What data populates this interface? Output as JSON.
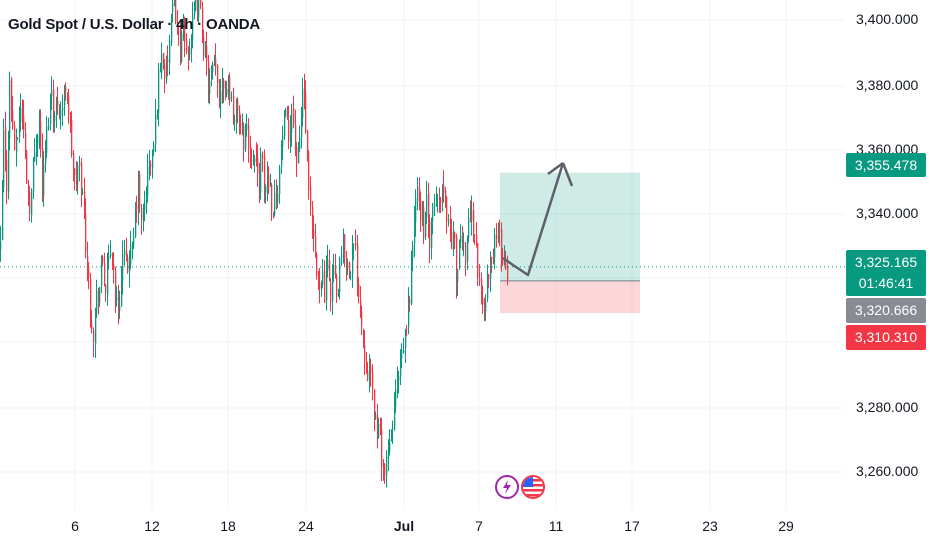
{
  "header": {
    "title": "Gold Spot / U.S. Dollar · 4h · OANDA"
  },
  "colors": {
    "up": "#089981",
    "down": "#F23645",
    "target": "#089981",
    "stop": "#F23645",
    "neutral": "#878b94",
    "arrow": "#5d606b"
  },
  "chart_data": {
    "type": "candlestick",
    "ylim": [
      3247,
      3411
    ],
    "y_ticks": [
      {
        "value": 3400,
        "label": "3,400.000"
      },
      {
        "value": 3380,
        "label": "3,380.000"
      },
      {
        "value": 3360,
        "label": "3,360.000"
      },
      {
        "value": 3340,
        "label": "3,340.000"
      },
      {
        "value": 3280,
        "label": "3,280.000"
      },
      {
        "value": 3260,
        "label": "3,260.000"
      }
    ],
    "x_ticks": [
      {
        "label": "6",
        "bold": false
      },
      {
        "label": "12",
        "bold": false
      },
      {
        "label": "18",
        "bold": false
      },
      {
        "label": "24",
        "bold": false
      },
      {
        "label": "Jul",
        "bold": true
      },
      {
        "label": "7",
        "bold": false
      },
      {
        "label": "11",
        "bold": false
      },
      {
        "label": "17",
        "bold": false
      },
      {
        "label": "23",
        "bold": false
      },
      {
        "label": "29",
        "bold": false
      }
    ],
    "current_price": {
      "value": 3325.165,
      "label": "3,325.165",
      "countdown": "01:46:41"
    },
    "position": {
      "entry": {
        "value": 3320.666,
        "label": "3,320.666"
      },
      "target": {
        "value": 3355.478,
        "label": "3,355.478"
      },
      "stop": {
        "value": 3310.31,
        "label": "3,310.310"
      }
    },
    "projection_path": [
      [
        3325,
        3322.5
      ],
      [
        3325,
        3355.5
      ],
      [
        3341,
        3347
      ]
    ],
    "path_points": [
      [
        0,
        3330
      ],
      [
        3,
        3368
      ],
      [
        6,
        3350
      ],
      [
        9,
        3385
      ],
      [
        12,
        3372
      ],
      [
        15,
        3360
      ],
      [
        18,
        3372
      ],
      [
        21,
        3378
      ],
      [
        24,
        3365
      ],
      [
        27,
        3352
      ],
      [
        30,
        3345
      ],
      [
        33,
        3358
      ],
      [
        36,
        3370
      ],
      [
        39,
        3372
      ],
      [
        42,
        3350
      ],
      [
        45,
        3362
      ],
      [
        48,
        3374
      ],
      [
        51,
        3384
      ],
      [
        54,
        3372
      ],
      [
        57,
        3380
      ],
      [
        60,
        3376
      ],
      [
        63,
        3378
      ],
      [
        66,
        3386
      ],
      [
        69,
        3372
      ],
      [
        72,
        3360
      ],
      [
        75,
        3350
      ],
      [
        78,
        3358
      ],
      [
        81,
        3352
      ],
      [
        84,
        3340
      ],
      [
        87,
        3325
      ],
      [
        90,
        3312
      ],
      [
        93,
        3305
      ],
      [
        96,
        3315
      ],
      [
        99,
        3318
      ],
      [
        102,
        3328
      ],
      [
        105,
        3318
      ],
      [
        108,
        3325
      ],
      [
        111,
        3332
      ],
      [
        114,
        3320
      ],
      [
        117,
        3310
      ],
      [
        120,
        3318
      ],
      [
        123,
        3330
      ],
      [
        126,
        3322
      ],
      [
        129,
        3330
      ],
      [
        132,
        3328
      ],
      [
        135,
        3342
      ],
      [
        138,
        3352
      ],
      [
        141,
        3338
      ],
      [
        144,
        3345
      ],
      [
        147,
        3355
      ],
      [
        150,
        3358
      ],
      [
        153,
        3362
      ],
      [
        156,
        3376
      ],
      [
        159,
        3390
      ],
      [
        162,
        3394
      ],
      [
        165,
        3386
      ],
      [
        168,
        3394
      ],
      [
        171,
        3404
      ],
      [
        174,
        3412
      ],
      [
        177,
        3400
      ],
      [
        180,
        3396
      ],
      [
        183,
        3400
      ],
      [
        186,
        3394
      ],
      [
        189,
        3398
      ],
      [
        192,
        3402
      ],
      [
        195,
        3407
      ],
      [
        198,
        3410
      ],
      [
        201,
        3404
      ],
      [
        204,
        3394
      ],
      [
        207,
        3386
      ],
      [
        210,
        3382
      ],
      [
        213,
        3390
      ],
      [
        216,
        3386
      ],
      [
        219,
        3380
      ],
      [
        222,
        3388
      ],
      [
        225,
        3382
      ],
      [
        228,
        3386
      ],
      [
        231,
        3378
      ],
      [
        234,
        3372
      ],
      [
        237,
        3378
      ],
      [
        240,
        3370
      ],
      [
        243,
        3366
      ],
      [
        246,
        3372
      ],
      [
        249,
        3360
      ],
      [
        252,
        3364
      ],
      [
        255,
        3358
      ],
      [
        258,
        3352
      ],
      [
        261,
        3360
      ],
      [
        264,
        3348
      ],
      [
        267,
        3356
      ],
      [
        270,
        3350
      ],
      [
        273,
        3344
      ],
      [
        276,
        3350
      ],
      [
        279,
        3356
      ],
      [
        282,
        3368
      ],
      [
        285,
        3372
      ],
      [
        288,
        3366
      ],
      [
        291,
        3378
      ],
      [
        294,
        3368
      ],
      [
        297,
        3356
      ],
      [
        300,
        3370
      ],
      [
        303,
        3386
      ],
      [
        306,
        3364
      ],
      [
        309,
        3344
      ],
      [
        312,
        3334
      ],
      [
        315,
        3326
      ],
      [
        318,
        3318
      ],
      [
        321,
        3325
      ],
      [
        324,
        3316
      ],
      [
        327,
        3324
      ],
      [
        330,
        3318
      ],
      [
        333,
        3326
      ],
      [
        336,
        3314
      ],
      [
        339,
        3322
      ],
      [
        342,
        3332
      ],
      [
        345,
        3330
      ],
      [
        348,
        3324
      ],
      [
        351,
        3328
      ],
      [
        354,
        3332
      ],
      [
        357,
        3322
      ],
      [
        360,
        3312
      ],
      [
        363,
        3300
      ],
      [
        366,
        3296
      ],
      [
        369,
        3290
      ],
      [
        372,
        3284
      ],
      [
        375,
        3276
      ],
      [
        378,
        3272
      ],
      [
        381,
        3266
      ],
      [
        384,
        3258
      ],
      [
        387,
        3262
      ],
      [
        390,
        3270
      ],
      [
        393,
        3278
      ],
      [
        396,
        3286
      ],
      [
        399,
        3290
      ],
      [
        402,
        3296
      ],
      [
        405,
        3304
      ],
      [
        408,
        3312
      ],
      [
        411,
        3326
      ],
      [
        414,
        3342
      ],
      [
        417,
        3348
      ],
      [
        420,
        3344
      ],
      [
        423,
        3338
      ],
      [
        426,
        3346
      ],
      [
        429,
        3332
      ],
      [
        432,
        3340
      ],
      [
        435,
        3348
      ],
      [
        438,
        3344
      ],
      [
        441,
        3352
      ],
      [
        444,
        3348
      ],
      [
        447,
        3342
      ],
      [
        450,
        3334
      ],
      [
        453,
        3336
      ],
      [
        456,
        3322
      ],
      [
        459,
        3330
      ],
      [
        462,
        3334
      ],
      [
        465,
        3330
      ],
      [
        468,
        3342
      ],
      [
        471,
        3340
      ],
      [
        474,
        3338
      ],
      [
        477,
        3326
      ],
      [
        480,
        3314
      ],
      [
        483,
        3312
      ],
      [
        486,
        3320
      ],
      [
        489,
        3322
      ],
      [
        492,
        3330
      ],
      [
        495,
        3336
      ],
      [
        498,
        3334
      ],
      [
        501,
        3330
      ],
      [
        504,
        3326
      ],
      [
        507,
        3324
      ],
      [
        510,
        3324.5
      ]
    ]
  }
}
